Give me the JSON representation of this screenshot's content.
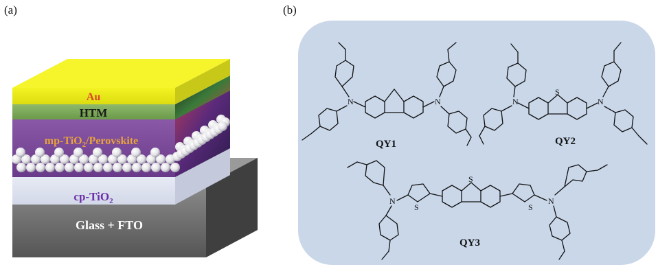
{
  "panel_a": {
    "letter": "(a)",
    "layers": [
      {
        "label": "Au",
        "color": "#d9472b"
      },
      {
        "label": "HTM",
        "color": "#1a1a1a"
      },
      {
        "label_main": "mp-TiO",
        "label_sub": "2",
        "label_tail": "/Perovskite",
        "color": "#e8a23a"
      },
      {
        "label_main": "cp-TiO",
        "label_sub": "2",
        "color": "#6b2fa8"
      },
      {
        "label": "Glass + FTO",
        "color": "#ffffff"
      }
    ]
  },
  "panel_b": {
    "letter": "(b)",
    "background": "#c9d7e9",
    "molecules": [
      {
        "label": "QY1"
      },
      {
        "label": "QY2"
      },
      {
        "label": "QY3"
      }
    ],
    "atoms": {
      "nitrogen": "N",
      "sulfur": "S"
    }
  }
}
